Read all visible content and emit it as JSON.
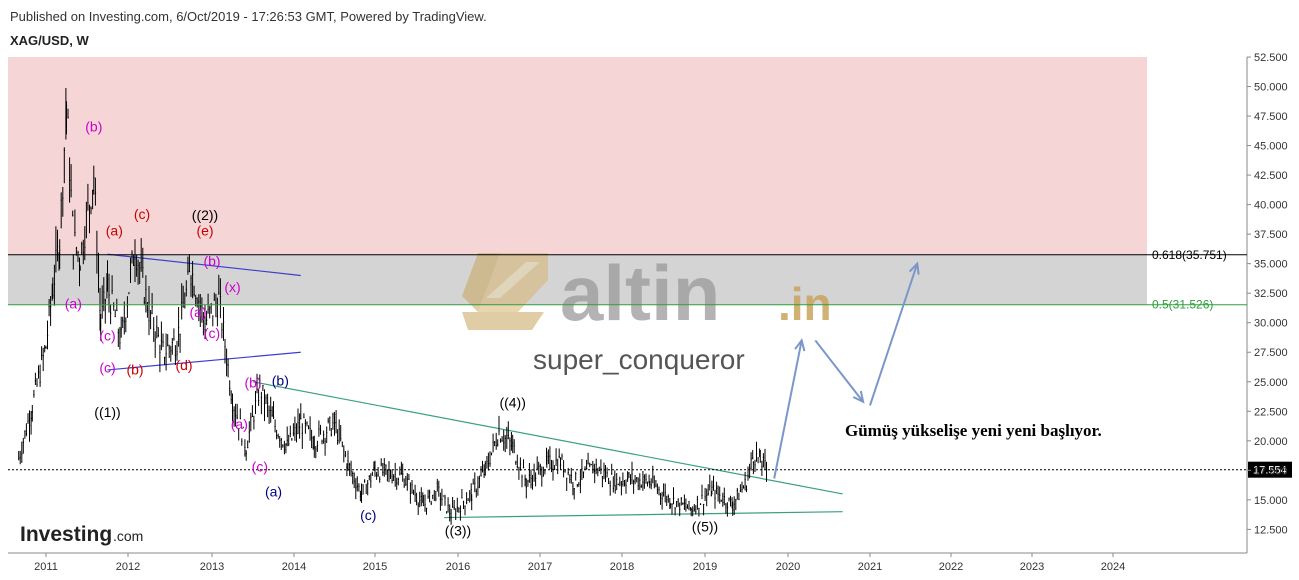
{
  "header": {
    "published": "Published on Investing.com, 6/Oct/2019 - 17:26:53 GMT, Powered by TradingView.",
    "symbol": "XAG/USD, W"
  },
  "branding": {
    "investing_logo": "Investing",
    "investing_logo_suffix": ".com",
    "watermark_text": "altin",
    "watermark_suffix": ".in",
    "author": "super_conqueror"
  },
  "annotation": "Gümüş yükselişe yeni yeni başlıyor.",
  "chart_data": {
    "type": "line",
    "x_axis": {
      "ticks": [
        "2011",
        "2012",
        "2013",
        "2014",
        "2015",
        "2016",
        "2017",
        "2018",
        "2019",
        "2020",
        "2021",
        "2022",
        "2023",
        "2024"
      ]
    },
    "y_axis": {
      "range": [
        10.5,
        52.5
      ],
      "ticks": [
        "12.500",
        "15.000",
        "17.500",
        "20.000",
        "22.500",
        "25.000",
        "27.500",
        "30.000",
        "32.500",
        "35.000",
        "37.500",
        "40.000",
        "42.500",
        "45.000",
        "47.500",
        "50.000",
        "52.500"
      ]
    },
    "last_price": "17.554",
    "fib_levels": [
      {
        "label": "0.618(35.751)",
        "value": 35.751,
        "color": "#000000"
      },
      {
        "label": "0.5(31.526)",
        "value": 31.526,
        "color": "#2e9e3e"
      }
    ],
    "zones": [
      {
        "from": 35.751,
        "to": 52.5,
        "color": "#f5d5d5"
      },
      {
        "from": 31.526,
        "to": 35.751,
        "color": "#d4d4d4"
      }
    ],
    "price_series": [
      [
        "2010-09",
        18.5
      ],
      [
        "2010-11",
        23.0
      ],
      [
        "2011-01",
        28.0
      ],
      [
        "2011-02",
        33.0
      ],
      [
        "2011-03",
        37.0
      ],
      [
        "2011-04",
        48.5
      ],
      [
        "2011-05",
        37.0
      ],
      [
        "2011-06",
        35.5
      ],
      [
        "2011-08",
        42.5
      ],
      [
        "2011-09",
        30.0
      ],
      [
        "2011-10",
        33.0
      ],
      [
        "2011-12",
        28.5
      ],
      [
        "2012-02",
        36.5
      ],
      [
        "2012-04",
        31.0
      ],
      [
        "2012-06",
        27.5
      ],
      [
        "2012-08",
        28.5
      ],
      [
        "2012-10",
        34.5
      ],
      [
        "2012-12",
        30.0
      ],
      [
        "2013-02",
        32.0
      ],
      [
        "2013-04",
        23.5
      ],
      [
        "2013-06",
        19.5
      ],
      [
        "2013-08",
        24.5
      ],
      [
        "2013-10",
        21.5
      ],
      [
        "2013-12",
        19.5
      ],
      [
        "2014-02",
        21.5
      ],
      [
        "2014-04",
        20.0
      ],
      [
        "2014-07",
        21.5
      ],
      [
        "2014-09",
        18.0
      ],
      [
        "2014-11",
        15.5
      ],
      [
        "2015-01",
        17.5
      ],
      [
        "2015-05",
        17.0
      ],
      [
        "2015-08",
        14.5
      ],
      [
        "2015-10",
        15.8
      ],
      [
        "2015-12",
        13.8
      ],
      [
        "2016-03",
        15.5
      ],
      [
        "2016-05",
        17.5
      ],
      [
        "2016-07",
        20.8
      ],
      [
        "2016-09",
        19.5
      ],
      [
        "2016-11",
        16.5
      ],
      [
        "2017-02",
        18.0
      ],
      [
        "2017-04",
        18.3
      ],
      [
        "2017-06",
        16.5
      ],
      [
        "2017-09",
        17.8
      ],
      [
        "2017-12",
        16.5
      ],
      [
        "2018-02",
        16.8
      ],
      [
        "2018-05",
        16.5
      ],
      [
        "2018-08",
        15.0
      ],
      [
        "2018-11",
        14.2
      ],
      [
        "2019-02",
        15.8
      ],
      [
        "2019-05",
        14.6
      ],
      [
        "2019-07",
        16.5
      ],
      [
        "2019-08",
        18.8
      ],
      [
        "2019-09",
        18.3
      ],
      [
        "2019-10",
        17.55
      ]
    ],
    "trendlines": [
      {
        "from": [
          "2011-10",
          35.8
        ],
        "to": [
          "2014-02",
          34.0
        ],
        "color": "#3d3dd0"
      },
      {
        "from": [
          "2011-10",
          26.0
        ],
        "to": [
          "2014-02",
          27.5
        ],
        "color": "#3d3dd0"
      },
      {
        "from": [
          "2013-07",
          25.0
        ],
        "to": [
          "2020-09",
          15.5
        ],
        "color": "#3aa27a"
      },
      {
        "from": [
          "2015-11",
          13.5
        ],
        "to": [
          "2020-09",
          14.0
        ],
        "color": "#3aa27a"
      }
    ],
    "wave_labels": [
      {
        "text": "(b)",
        "t": "2011-08",
        "v": 46.2,
        "color": "#cc00cc"
      },
      {
        "text": "(a)",
        "t": "2011-05",
        "v": 31.2,
        "color": "#cc00cc"
      },
      {
        "text": "(c)",
        "t": "2011-10",
        "v": 28.5,
        "color": "#cc00cc"
      },
      {
        "text": "(c)",
        "t": "2011-10",
        "v": 25.8,
        "color": "#cc00cc"
      },
      {
        "text": "((1))",
        "t": "2011-10",
        "v": 22.0,
        "color": "#000000"
      },
      {
        "text": "(a)",
        "t": "2011-11",
        "v": 37.4,
        "color": "#cc0000"
      },
      {
        "text": "(c)",
        "t": "2012-03",
        "v": 38.8,
        "color": "#cc0000"
      },
      {
        "text": "(b)",
        "t": "2012-02",
        "v": 25.6,
        "color": "#cc0000"
      },
      {
        "text": "(d)",
        "t": "2012-09",
        "v": 26.0,
        "color": "#cc0000"
      },
      {
        "text": "(e)",
        "t": "2012-12",
        "v": 37.4,
        "color": "#cc0000"
      },
      {
        "text": "((2))",
        "t": "2012-12",
        "v": 38.7,
        "color": "#000000"
      },
      {
        "text": "(b)",
        "t": "2013-01",
        "v": 34.8,
        "color": "#cc00cc"
      },
      {
        "text": "(a)",
        "t": "2012-11",
        "v": 30.5,
        "color": "#cc00cc"
      },
      {
        "text": "(x)",
        "t": "2013-04",
        "v": 32.6,
        "color": "#cc00cc"
      },
      {
        "text": "(c)",
        "t": "2013-01",
        "v": 28.7,
        "color": "#cc00cc"
      },
      {
        "text": "(b)",
        "t": "2013-07",
        "v": 24.5,
        "color": "#cc00cc"
      },
      {
        "text": "(b)",
        "t": "2013-11",
        "v": 24.7,
        "color": "#000080"
      },
      {
        "text": "(a)",
        "t": "2013-05",
        "v": 21.0,
        "color": "#cc00cc"
      },
      {
        "text": "(c)",
        "t": "2013-08",
        "v": 17.4,
        "color": "#cc00cc"
      },
      {
        "text": "(a)",
        "t": "2013-10",
        "v": 15.3,
        "color": "#000080"
      },
      {
        "text": "(c)",
        "t": "2014-12",
        "v": 13.3,
        "color": "#000080"
      },
      {
        "text": "((3))",
        "t": "2016-01",
        "v": 12.0,
        "color": "#000000"
      },
      {
        "text": "((4))",
        "t": "2016-09",
        "v": 22.8,
        "color": "#000000"
      },
      {
        "text": "((5))",
        "t": "2019-01",
        "v": 12.3,
        "color": "#000000"
      }
    ],
    "projection_arrows": [
      {
        "from": [
          "2019-11",
          16.8
        ],
        "to": [
          "2020-03",
          28.5
        ]
      },
      {
        "from": [
          "2020-05",
          28.5
        ],
        "to": [
          "2020-12",
          23.3
        ]
      },
      {
        "from": [
          "2021-01",
          23.0
        ],
        "to": [
          "2021-08",
          35.0
        ]
      }
    ]
  }
}
